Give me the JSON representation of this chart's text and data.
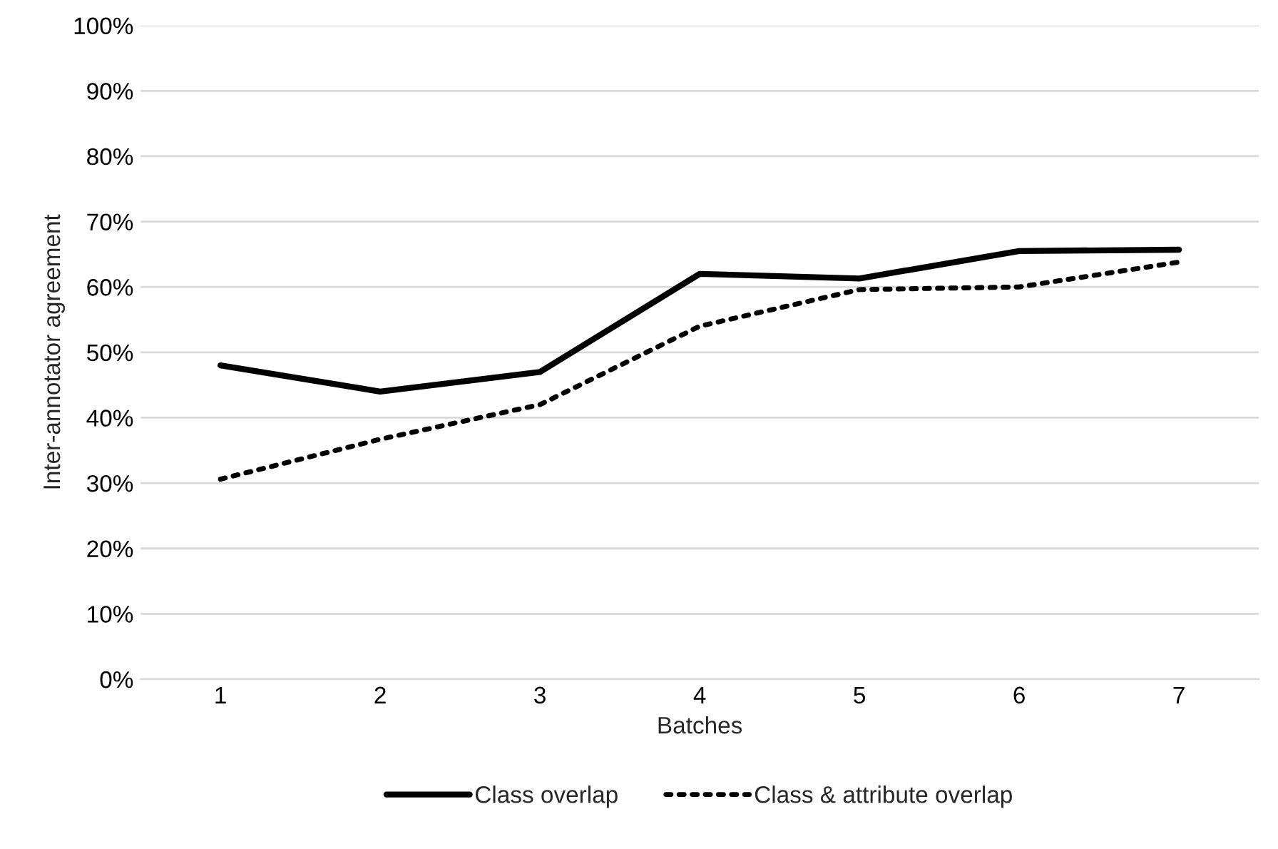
{
  "chart_data": {
    "type": "line",
    "xlabel": "Batches",
    "ylabel": "Inter-annotator agreement",
    "categories": [
      "1",
      "2",
      "3",
      "4",
      "5",
      "6",
      "7"
    ],
    "series": [
      {
        "name": "Class overlap",
        "color": "#000000",
        "line_style": "solid",
        "values": [
          48,
          44,
          47,
          62,
          61.3,
          65.5,
          65.7
        ]
      },
      {
        "name": "Class & attribute overlap",
        "color": "#000000",
        "line_style": "dotted",
        "values": [
          30.6,
          36.7,
          42,
          54,
          59.6,
          60,
          63.8
        ]
      }
    ],
    "ylim": [
      0,
      100
    ],
    "yticks": [
      {
        "value": 0,
        "label": "0%"
      },
      {
        "value": 10,
        "label": "10%"
      },
      {
        "value": 20,
        "label": "20%"
      },
      {
        "value": 30,
        "label": "30%"
      },
      {
        "value": 40,
        "label": "40%"
      },
      {
        "value": 50,
        "label": "50%"
      },
      {
        "value": 60,
        "label": "60%"
      },
      {
        "value": 70,
        "label": "70%"
      },
      {
        "value": 80,
        "label": "80%"
      },
      {
        "value": 90,
        "label": "90%"
      },
      {
        "value": 100,
        "label": "100%"
      }
    ],
    "grid": "y",
    "legend": "bottom",
    "marker": "none"
  }
}
